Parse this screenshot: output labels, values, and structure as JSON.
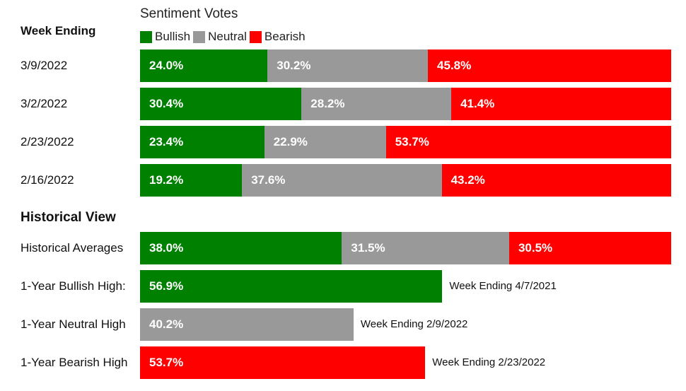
{
  "header": {
    "title": "Sentiment Votes",
    "week_ending_label": "Week Ending"
  },
  "legend": [
    {
      "label": "Bullish",
      "color": "#008000"
    },
    {
      "label": "Neutral",
      "color": "#999999"
    },
    {
      "label": "Bearish",
      "color": "#ff0000"
    }
  ],
  "historical": {
    "title": "Historical View"
  },
  "chart_data": {
    "type": "bar",
    "orientation": "horizontal",
    "stacked": true,
    "title": "Sentiment Votes",
    "series_names": [
      "Bullish",
      "Neutral",
      "Bearish"
    ],
    "colors": {
      "Bullish": "#008000",
      "Neutral": "#999999",
      "Bearish": "#ff0000"
    },
    "xlim": [
      0,
      100
    ],
    "weekly": [
      {
        "label": "3/9/2022",
        "values": [
          24.0,
          30.2,
          45.8
        ],
        "display": [
          "24.0%",
          "30.2%",
          "45.8%"
        ]
      },
      {
        "label": "3/2/2022",
        "values": [
          30.4,
          28.2,
          41.4
        ],
        "display": [
          "30.4%",
          "28.2%",
          "41.4%"
        ]
      },
      {
        "label": "2/23/2022",
        "values": [
          23.4,
          22.9,
          53.7
        ],
        "display": [
          "23.4%",
          "22.9%",
          "53.7%"
        ]
      },
      {
        "label": "2/16/2022",
        "values": [
          19.2,
          37.6,
          43.2
        ],
        "display": [
          "19.2%",
          "37.6%",
          "43.2%"
        ]
      }
    ],
    "historical": [
      {
        "label": "Historical Averages",
        "values": [
          38.0,
          31.5,
          30.5
        ],
        "display": [
          "38.0%",
          "31.5%",
          "30.5%"
        ]
      },
      {
        "label": "1-Year Bullish High:",
        "series": "Bullish",
        "value": 56.9,
        "display": "56.9%",
        "note": "Week Ending 4/7/2021"
      },
      {
        "label": "1-Year Neutral High",
        "series": "Neutral",
        "value": 40.2,
        "display": "40.2%",
        "note": "Week Ending 2/9/2022"
      },
      {
        "label": "1-Year Bearish High",
        "series": "Bearish",
        "value": 53.7,
        "display": "53.7%",
        "note": "Week Ending 2/23/2022"
      }
    ]
  }
}
